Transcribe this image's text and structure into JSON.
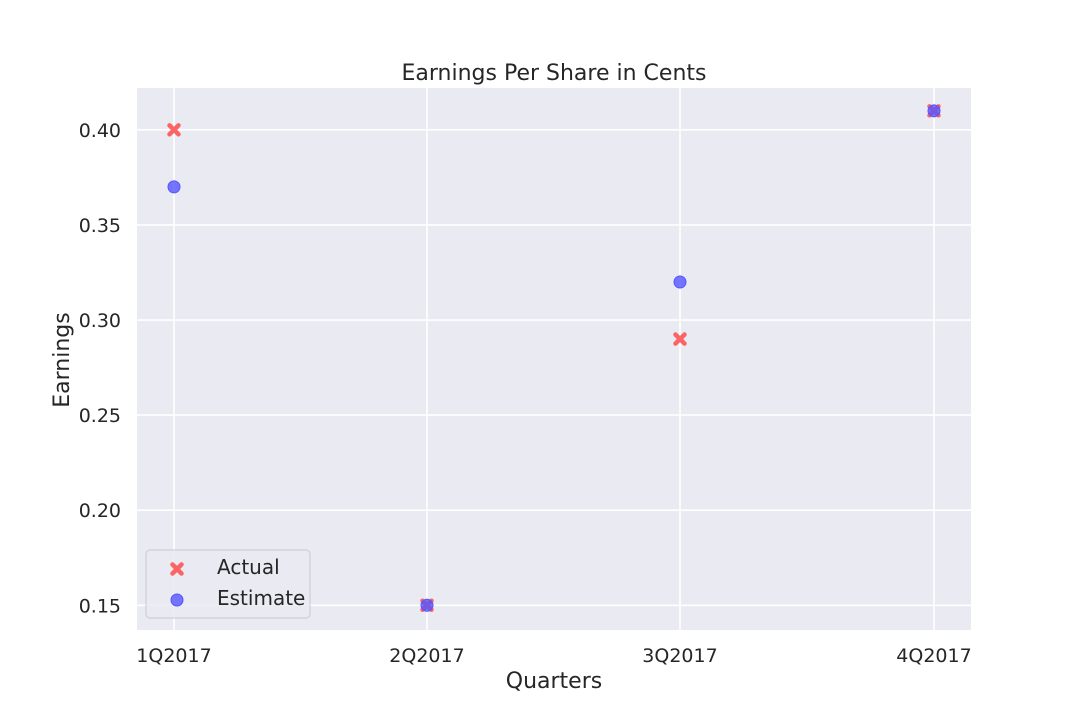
{
  "chart_data": {
    "type": "scatter",
    "title": "Earnings Per Share in Cents",
    "xlabel": "Quarters",
    "ylabel": "Earnings",
    "categories": [
      "1Q2017",
      "2Q2017",
      "3Q2017",
      "4Q2017"
    ],
    "series": [
      {
        "name": "Actual",
        "marker": "x",
        "color": "#ff4d4d",
        "values": [
          0.4,
          0.15,
          0.29,
          0.41
        ]
      },
      {
        "name": "Estimate",
        "marker": "circle",
        "color": "#5555ff",
        "values": [
          0.37,
          0.15,
          0.32,
          0.41
        ]
      }
    ],
    "yticks": [
      "0.15",
      "0.20",
      "0.25",
      "0.30",
      "0.35",
      "0.40"
    ],
    "ylim": [
      0.137,
      0.422
    ],
    "grid": true,
    "legend_position": "lower-left",
    "background_color": "#eaeaf2"
  }
}
